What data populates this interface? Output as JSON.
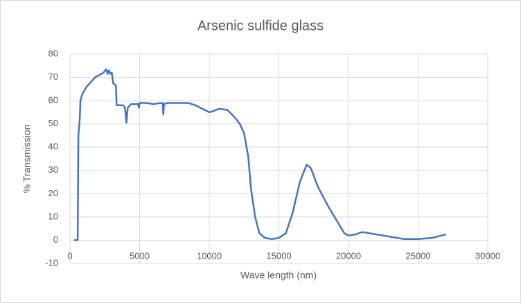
{
  "chart_data": {
    "type": "line",
    "title": "Arsenic sulfide glass",
    "x_label": "Wave length (nm)",
    "y_label": "% Transmission",
    "xlim": [
      0,
      30000
    ],
    "ylim": [
      -10,
      80
    ],
    "xticks": [
      0,
      5000,
      10000,
      15000,
      20000,
      25000,
      30000
    ],
    "yticks": [
      -10,
      0,
      10,
      20,
      30,
      40,
      50,
      60,
      70,
      80
    ],
    "grid": true,
    "series": [
      {
        "name": "% Transmission",
        "color": "#4472c4",
        "x": [
          300,
          550,
          600,
          700,
          750,
          900,
          1200,
          1500,
          1800,
          2100,
          2400,
          2600,
          2700,
          2800,
          2900,
          3000,
          3100,
          3300,
          3350,
          3500,
          3800,
          3950,
          4050,
          4150,
          4400,
          4900,
          4950,
          5000,
          5500,
          6000,
          6500,
          6650,
          6700,
          6750,
          7000,
          8000,
          8500,
          9000,
          9500,
          10000,
          10300,
          10700,
          11300,
          11800,
          12200,
          12500,
          12800,
          13000,
          13300,
          13600,
          14000,
          14500,
          15000,
          15500,
          16000,
          16500,
          17000,
          17300,
          17800,
          18500,
          19200,
          19700,
          20000,
          20500,
          21000,
          21500,
          22000,
          23000,
          24000,
          25000,
          26000,
          27000
        ],
        "values": [
          0,
          0,
          45,
          52,
          60,
          63,
          66,
          68,
          70,
          71,
          72,
          73.5,
          71.5,
          73,
          71.5,
          72,
          67.5,
          66.5,
          58,
          58,
          58,
          57,
          50.5,
          57,
          58.5,
          58.5,
          57,
          59,
          59,
          58.5,
          59,
          59,
          54,
          58.5,
          59,
          59,
          59,
          58,
          56.5,
          55,
          55.5,
          56.5,
          56,
          53,
          50,
          46,
          36,
          22,
          10,
          3,
          1,
          0.5,
          1,
          3,
          12,
          25,
          32.5,
          31,
          23,
          15,
          8,
          3,
          2,
          2.5,
          3.5,
          3,
          2.5,
          1.5,
          0.5,
          0.5,
          1,
          2.5
        ]
      }
    ]
  }
}
